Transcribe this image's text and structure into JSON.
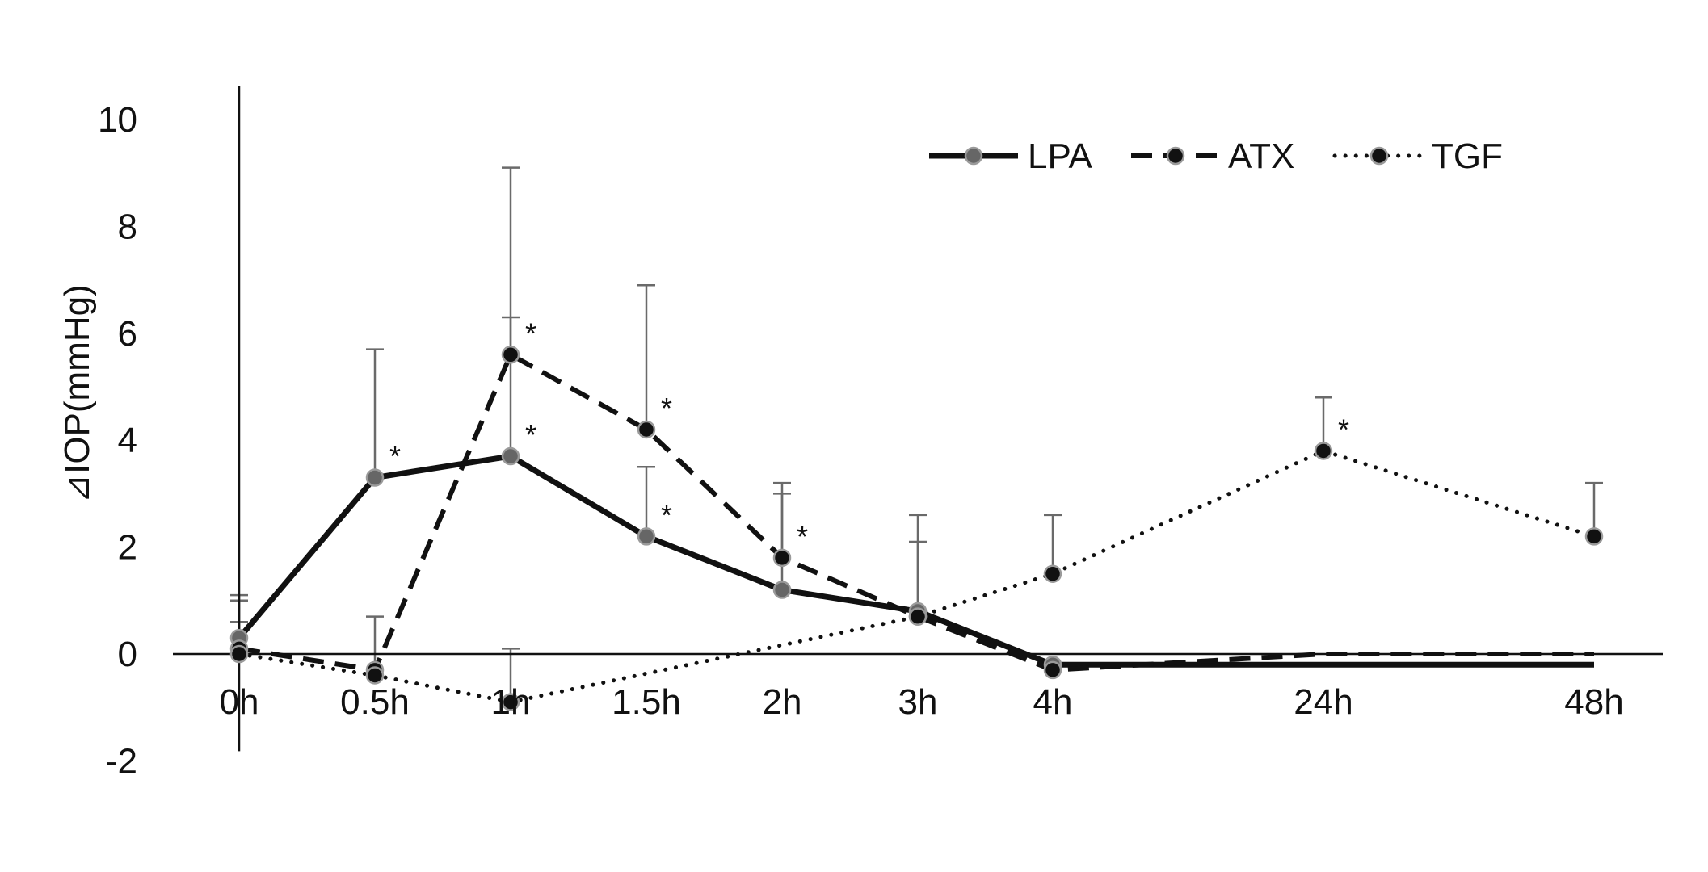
{
  "chart_data": {
    "type": "line",
    "title": "",
    "xlabel": "",
    "ylabel": "⊿IOP(mmHg)",
    "ylim": [
      -2,
      10
    ],
    "yticks": [
      -2,
      0,
      2,
      4,
      6,
      8,
      10
    ],
    "categories": [
      "0h",
      "0.5h",
      "1h",
      "1.5h",
      "2h",
      "3h",
      "4h",
      "24h",
      "48h"
    ],
    "legend_position": "top-right",
    "grid": false,
    "series": [
      {
        "name": "LPA",
        "style": "solid",
        "line_color": "#111111",
        "marker_color": "#666666",
        "values": [
          0.3,
          3.3,
          3.7,
          2.2,
          1.2,
          0.8,
          -0.2,
          -0.2,
          -0.2
        ],
        "error_upper": [
          1.0,
          5.7,
          6.3,
          3.5,
          3.0,
          2.1,
          null,
          null,
          null
        ],
        "significance": [
          "",
          "*",
          "*",
          "*",
          "",
          "",
          "",
          "",
          ""
        ],
        "markers": [
          true,
          true,
          true,
          true,
          true,
          true,
          true,
          false,
          false
        ]
      },
      {
        "name": "ATX",
        "style": "dashed",
        "line_color": "#111111",
        "marker_color": "#111111",
        "values": [
          0.1,
          -0.3,
          5.6,
          4.2,
          1.8,
          0.7,
          -0.3,
          0.0,
          0.0
        ],
        "error_upper": [
          1.1,
          0.7,
          9.1,
          6.9,
          3.2,
          2.6,
          null,
          null,
          null
        ],
        "significance": [
          "",
          "",
          "*",
          "*",
          "*",
          "",
          "",
          "",
          ""
        ],
        "markers": [
          true,
          true,
          true,
          true,
          true,
          true,
          true,
          false,
          false
        ]
      },
      {
        "name": "TGF",
        "style": "dotted",
        "line_color": "#111111",
        "marker_color": "#111111",
        "values": [
          0.0,
          -0.4,
          -0.9,
          null,
          null,
          0.7,
          1.5,
          3.8,
          2.2
        ],
        "error_upper": [
          0.6,
          null,
          0.1,
          null,
          null,
          null,
          2.6,
          4.8,
          3.2
        ],
        "significance": [
          "",
          "",
          "",
          "",
          "",
          "",
          "",
          "*",
          ""
        ],
        "markers": [
          true,
          true,
          true,
          false,
          false,
          true,
          true,
          true,
          true
        ]
      }
    ]
  }
}
